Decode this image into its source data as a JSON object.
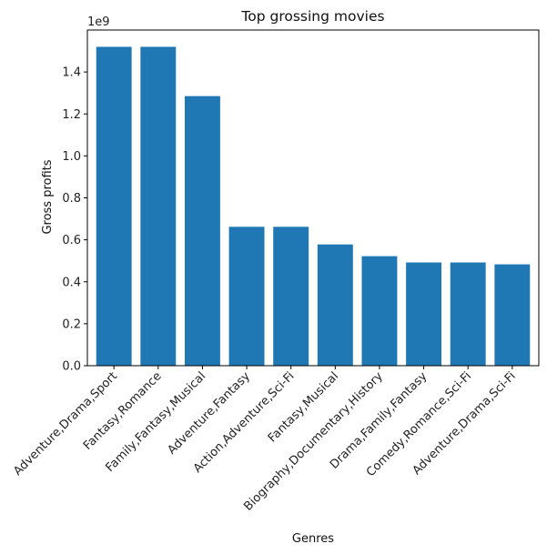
{
  "chart_data": {
    "type": "bar",
    "title": "Top grossing movies",
    "xlabel": "Genres",
    "ylabel": "Gross profits",
    "offset_label": "1e9",
    "categories": [
      "Adventure,Drama,Sport",
      "Fantasy,Romance",
      "Family,Fantasy,Musical",
      "Adventure,Fantasy",
      "Action,Adventure,Sci-Fi",
      "Fantasy,Musical",
      "Biography,Documentary,History",
      "Drama,Family,Fantasy",
      "Comedy,Romance,Sci-Fi",
      "Adventure,Drama,Sci-Fi"
    ],
    "values": [
      1.52,
      1.52,
      1.285,
      0.662,
      0.662,
      0.578,
      0.522,
      0.492,
      0.492,
      0.483
    ],
    "yticks": [
      "0.0",
      "0.2",
      "0.4",
      "0.6",
      "0.8",
      "1.0",
      "1.2",
      "1.4"
    ],
    "ylim": [
      0,
      1.6
    ],
    "grid": false,
    "colors": {
      "bar": "#1f77b4"
    }
  }
}
